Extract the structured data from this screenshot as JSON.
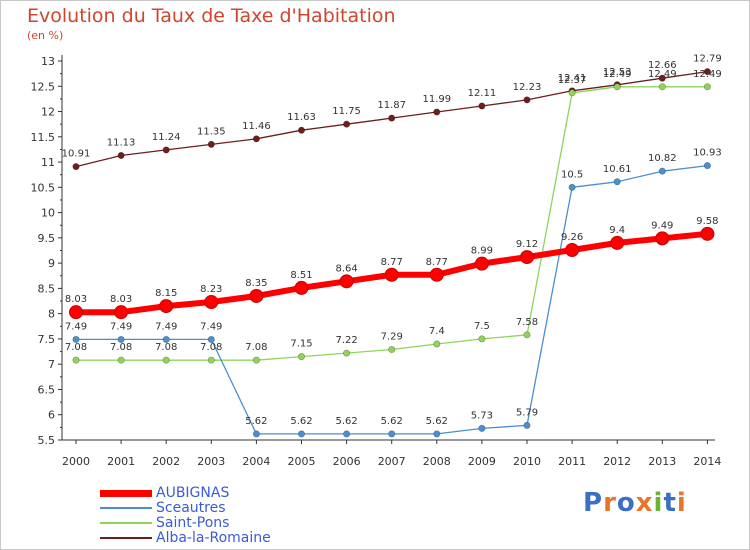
{
  "header": {
    "title": "Evolution du Taux de Taxe d'Habitation",
    "unit": "(en %)"
  },
  "logo": {
    "text": "Proxiti"
  },
  "chart_data": {
    "type": "line",
    "title": "Evolution du Taux de Taxe d'Habitation",
    "ylabel": "(en %)",
    "x": [
      "2000",
      "2001",
      "2002",
      "2003",
      "2004",
      "2005",
      "2006",
      "2007",
      "2008",
      "2009",
      "2010",
      "2011",
      "2012",
      "2013",
      "2014"
    ],
    "ylim": [
      5.5,
      13
    ],
    "yticks": [
      "5.5",
      "6",
      "6.5",
      "7",
      "7.5",
      "8",
      "8.5",
      "9",
      "9.5",
      "10",
      "10.5",
      "11",
      "11.5",
      "12",
      "12.5",
      "13"
    ],
    "grid": false,
    "legend_position": "bottom-left",
    "series": [
      {
        "name": "Alba-la-Romaine",
        "color": "#6e1e1e",
        "values": [
          10.91,
          11.13,
          11.24,
          11.35,
          11.46,
          11.63,
          11.75,
          11.87,
          11.99,
          12.11,
          12.23,
          12.41,
          12.53,
          12.66,
          12.79
        ],
        "labels": [
          "10.91",
          "11.13",
          "11.24",
          "11.35",
          "11.46",
          "11.63",
          "11.75",
          "11.87",
          "11.99",
          "12.11",
          "12.23",
          "12.41",
          "12.53",
          "12.66",
          "12.79"
        ]
      },
      {
        "name": "Saint-Pons",
        "color": "#8fd45a",
        "values": [
          7.08,
          7.08,
          7.08,
          7.08,
          7.08,
          7.15,
          7.22,
          7.29,
          7.4,
          7.5,
          7.58,
          12.37,
          12.49,
          12.49,
          12.49
        ],
        "labels": [
          "7.08",
          "7.08",
          "7.08",
          "7.08",
          "7.08",
          "7.15",
          "7.22",
          "7.29",
          "7.4",
          "7.5",
          "7.58",
          "12.37",
          "12.49",
          "12.49",
          "12.49"
        ]
      },
      {
        "name": "Sceautres",
        "color": "#4a8fd0",
        "values": [
          7.49,
          7.49,
          7.49,
          7.49,
          5.62,
          5.62,
          5.62,
          5.62,
          5.62,
          5.73,
          5.79,
          10.5,
          10.61,
          10.82,
          10.93
        ],
        "labels": [
          "7.49",
          "7.49",
          "7.49",
          "7.49",
          "5.62",
          "5.62",
          "5.62",
          "5.62",
          "5.62",
          "5.73",
          "5.79",
          "10.5",
          "10.61",
          "10.82",
          "10.93"
        ]
      },
      {
        "name": "AUBIGNAS",
        "color": "#ff0000",
        "values": [
          8.03,
          8.03,
          8.15,
          8.23,
          8.35,
          8.51,
          8.64,
          8.77,
          8.77,
          8.99,
          9.12,
          9.26,
          9.4,
          9.49,
          9.58
        ],
        "labels": [
          "8.03",
          "8.03",
          "8.15",
          "8.23",
          "8.35",
          "8.51",
          "8.64",
          "8.77",
          "8.77",
          "8.99",
          "9.12",
          "9.26",
          "9.4",
          "9.49",
          "9.58"
        ]
      }
    ],
    "legend": [
      "AUBIGNAS",
      "Sceautres",
      "Saint-Pons",
      "Alba-la-Romaine"
    ]
  }
}
